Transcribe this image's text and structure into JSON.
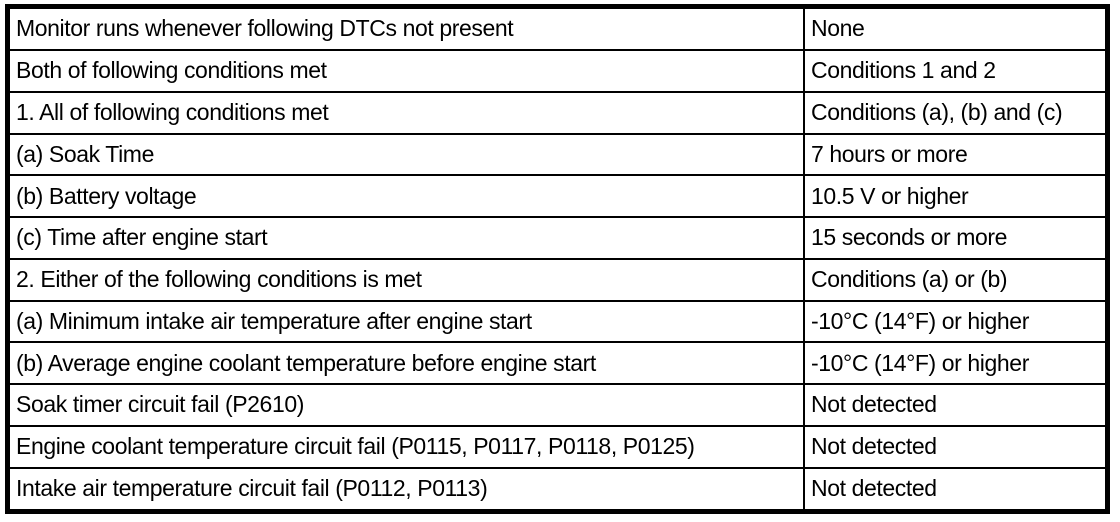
{
  "colors": {
    "background": "#ffffff",
    "border": "#000000",
    "text": "#000000"
  },
  "table": {
    "rows": [
      {
        "left": "Monitor runs whenever following DTCs not present",
        "right": "None"
      },
      {
        "left": "Both of following conditions met",
        "right": "Conditions 1 and 2"
      },
      {
        "left": "1. All of following conditions met",
        "right": "Conditions (a), (b) and (c)"
      },
      {
        "left": "(a) Soak Time",
        "right": "7 hours or more"
      },
      {
        "left": "(b) Battery voltage",
        "right": "10.5 V or higher"
      },
      {
        "left": "(c) Time after engine start",
        "right": "15 seconds or more"
      },
      {
        "left": "2. Either of the following conditions is met",
        "right": "Conditions (a) or (b)"
      },
      {
        "left": "(a) Minimum intake air temperature after engine start",
        "right": "-10°C (14°F) or higher"
      },
      {
        "left": "(b) Average engine coolant temperature before engine start",
        "right": "-10°C (14°F) or higher"
      },
      {
        "left": "Soak timer circuit fail (P2610)",
        "right": "Not detected"
      },
      {
        "left": "Engine coolant temperature circuit fail (P0115, P0117, P0118, P0125)",
        "right": "Not detected"
      },
      {
        "left": "Intake air temperature circuit fail (P0112, P0113)",
        "right": "Not detected"
      }
    ]
  }
}
